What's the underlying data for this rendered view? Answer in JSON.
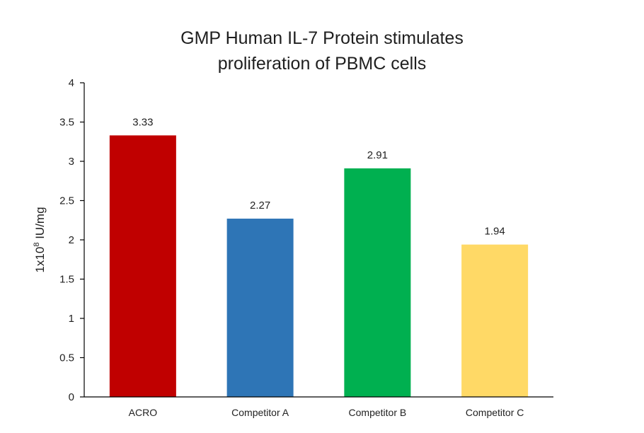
{
  "chart_data": {
    "type": "bar",
    "title_lines": [
      "GMP Human IL-7 Protein stimulates",
      "proliferation of PBMC cells"
    ],
    "ylabel": {
      "base": "1x10",
      "exponent": "8",
      "unit": " IU/mg"
    },
    "xlabel": "",
    "categories": [
      "ACRO",
      "Competitor A",
      "Competitor B",
      "Competitor C"
    ],
    "values": [
      3.33,
      2.27,
      2.91,
      1.94
    ],
    "data_labels": [
      "3.33",
      "2.27",
      "2.91",
      "1.94"
    ],
    "colors": [
      "#C00000",
      "#2E75B6",
      "#00B050",
      "#FFD966"
    ],
    "ylim": [
      0,
      4
    ],
    "yticks": [
      "0",
      "0.5",
      "1",
      "1.5",
      "2",
      "2.5",
      "3",
      "3.5",
      "4"
    ],
    "grid": false,
    "legend": "none"
  }
}
